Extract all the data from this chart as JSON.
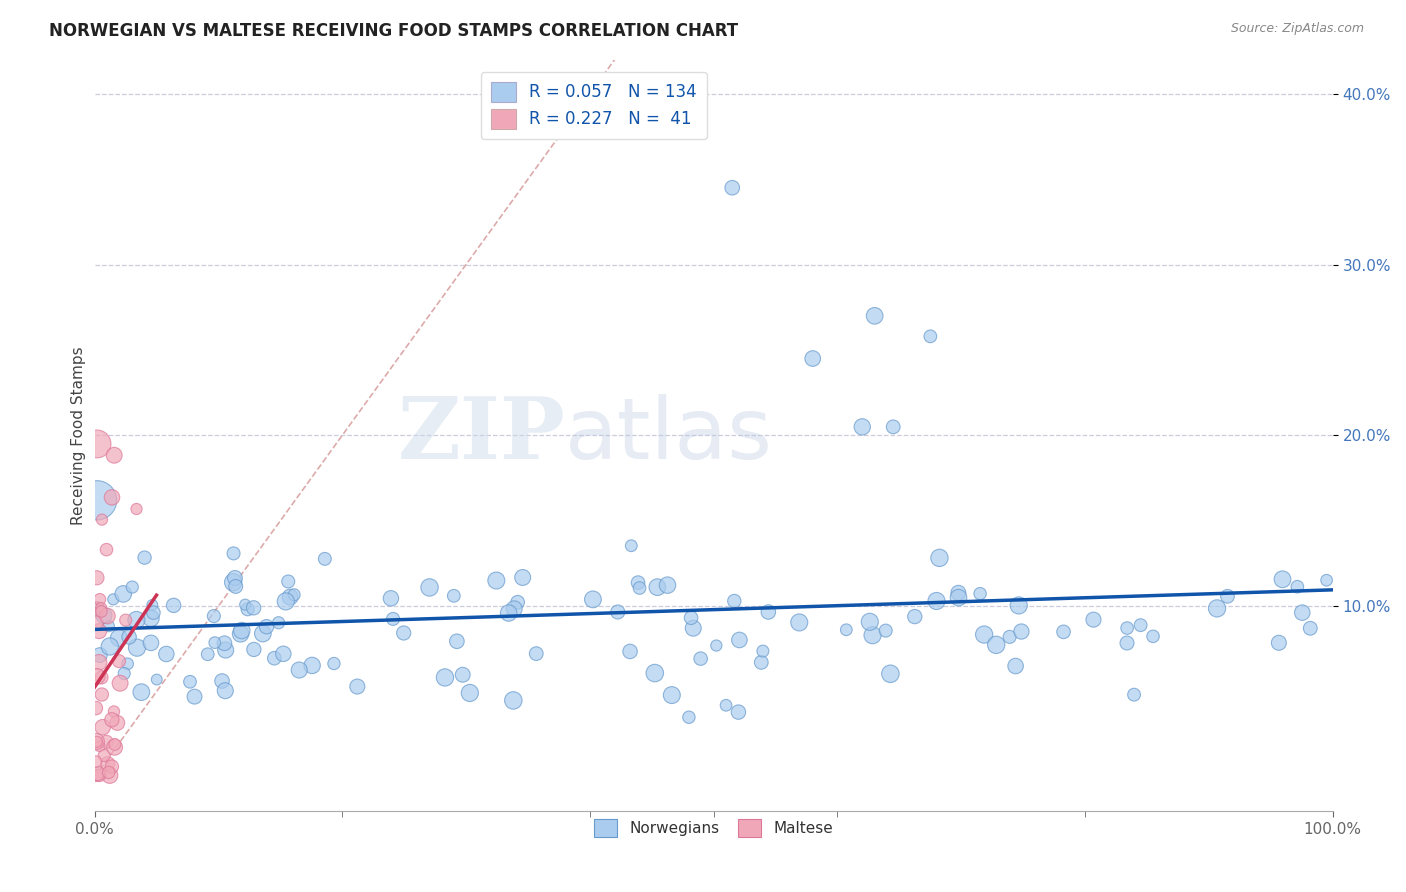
{
  "title": "NORWEGIAN VS MALTESE RECEIVING FOOD STAMPS CORRELATION CHART",
  "source": "Source: ZipAtlas.com",
  "ylabel": "Receiving Food Stamps",
  "xlim": [
    0,
    1.0
  ],
  "ylim": [
    -0.02,
    0.42
  ],
  "plot_ylim": [
    -0.02,
    0.42
  ],
  "ytick_vals": [
    0.1,
    0.2,
    0.3,
    0.4
  ],
  "ytick_labels": [
    "10.0%",
    "20.0%",
    "30.0%",
    "40.0%"
  ],
  "watermark_zip": "ZIP",
  "watermark_atlas": "atlas",
  "legend_line1": "R = 0.057   N = 134",
  "legend_line2": "R = 0.227   N =  41",
  "norwegian_color": "#aaccee",
  "maltese_color": "#f0a8b8",
  "norwegian_edge_color": "#6699cc",
  "maltese_edge_color": "#dd7799",
  "norwegian_line_color": "#1155aa",
  "maltese_line_color": "#cc3355",
  "diagonal_color": "#ddaaaa",
  "background_color": "#ffffff",
  "grid_color": "#ccccdd",
  "title_color": "#222222",
  "source_color": "#888888",
  "ylabel_color": "#444444",
  "tick_color_x": "#666666",
  "tick_color_y": "#4477bb"
}
